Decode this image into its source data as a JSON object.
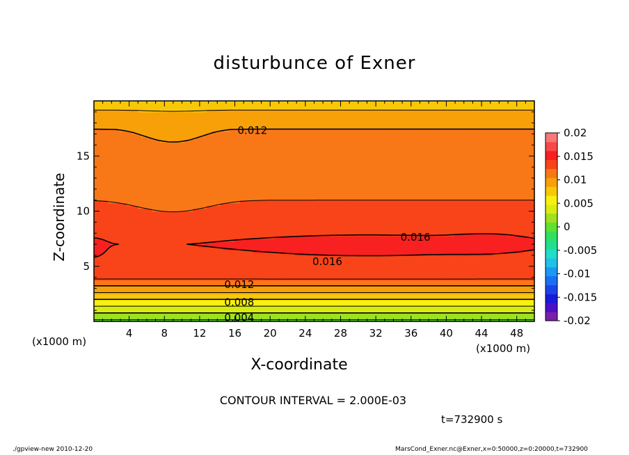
{
  "chart_data": {
    "type": "contour",
    "title": "disturbunce of Exner",
    "xlabel": "X-coordinate",
    "ylabel": "Z-coordinate",
    "x_unit": "(x1000 m)",
    "xlim": [
      0,
      50
    ],
    "ylim": [
      0,
      20
    ],
    "x_ticks": [
      4,
      8,
      12,
      16,
      20,
      24,
      28,
      32,
      36,
      40,
      44,
      48
    ],
    "y_ticks": [
      5,
      10,
      15
    ],
    "colorbar": {
      "ticks": [
        "0.02",
        "0.015",
        "0.01",
        "0.005",
        "0",
        "-0.005",
        "-0.01",
        "-0.015",
        "-0.02"
      ],
      "levels": [
        -0.02,
        -0.018,
        -0.016,
        -0.014,
        -0.012,
        -0.01,
        -0.008,
        -0.006,
        -0.004,
        -0.002,
        0,
        0.002,
        0.004,
        0.006,
        0.008,
        0.01,
        0.012,
        0.014,
        0.016,
        0.018,
        0.02
      ],
      "colors": [
        "#7a1fa8",
        "#4a10c8",
        "#1a1ad8",
        "#1a44e8",
        "#1a6ef4",
        "#1a98f4",
        "#20c0e8",
        "#20dcc8",
        "#20e090",
        "#30e060",
        "#60e030",
        "#a0e020",
        "#d8ec10",
        "#f8f010",
        "#f8c808",
        "#f8a008",
        "#f87818",
        "#f84418",
        "#f82020",
        "#f84848",
        "#f87878"
      ]
    },
    "contour_levels": [
      0.002,
      0.004,
      0.006,
      0.008,
      0.01,
      0.012,
      0.014,
      0.016
    ],
    "contour_labels": [
      {
        "text": "0.012",
        "x": 18,
        "z": 17.3
      },
      {
        "text": "0.016",
        "x": 36.5,
        "z": 7.6
      },
      {
        "text": "0.016",
        "x": 26.5,
        "z": 5.4
      },
      {
        "text": "0.012",
        "x": 16.5,
        "z": 3.3
      },
      {
        "text": "0.008",
        "x": 16.5,
        "z": 1.7
      },
      {
        "text": "0.004",
        "x": 16.5,
        "z": 0.3
      }
    ],
    "contour_interval": "CONTOUR INTERVAL = 2.000E-03",
    "time_label": "t=732900 s"
  },
  "footer": {
    "left": "./gpview-new   2010-12-20",
    "right": "MarsCond_Exner.nc@Exner,x=0:50000,z=0:20000,t=732900"
  }
}
